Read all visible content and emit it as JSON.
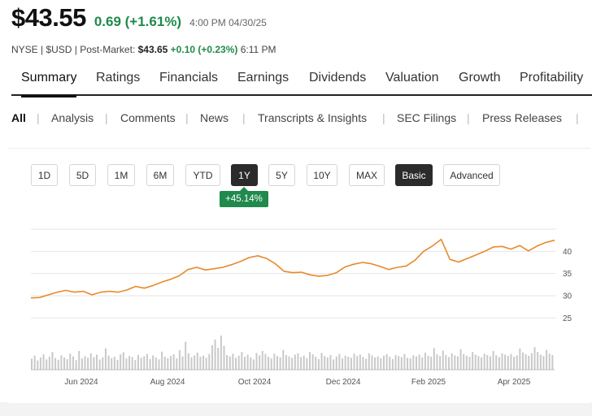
{
  "quote": {
    "price": "$43.55",
    "change": "0.69 (+1.61%)",
    "time": "4:00 PM 04/30/25",
    "meta_prefix": "NYSE | $USD | Post-Market:",
    "post_price": "$43.65",
    "post_change": "+0.10 (+0.23%)",
    "post_time": "6:11 PM"
  },
  "main_tabs": [
    "Summary",
    "Ratings",
    "Financials",
    "Earnings",
    "Dividends",
    "Valuation",
    "Growth",
    "Profitability"
  ],
  "sub_tabs": [
    "All",
    "Analysis",
    "Comments",
    "News",
    "Transcripts & Insights",
    "SEC Filings",
    "Press Releases"
  ],
  "range_buttons": [
    "1D",
    "5D",
    "1M",
    "6M",
    "YTD",
    "1Y",
    "5Y",
    "10Y",
    "MAX"
  ],
  "mode_buttons": [
    "Basic",
    "Advanced"
  ],
  "selected_range": "1Y",
  "selected_mode": "Basic",
  "period_change_badge": "+45.14%",
  "colors": {
    "line": "#e8892c",
    "positive": "#1f8a4c",
    "volume": "#c9c9c9",
    "grid": "#e6e6e6"
  },
  "chart_data": {
    "type": "line",
    "x_tick_labels": [
      "Jun 2024",
      "Aug 2024",
      "Oct 2024",
      "Dec 2024",
      "Feb 2025",
      "Apr 2025"
    ],
    "y_tick_labels": [
      "25",
      "30",
      "35",
      "40"
    ],
    "ylim": [
      22.5,
      45
    ],
    "grid": true,
    "series": [
      {
        "values": [
          29.5,
          29.6,
          30.2,
          30.8,
          31.2,
          30.8,
          31.0,
          30.2,
          30.8,
          31.0,
          30.8,
          31.3,
          32.1,
          31.7,
          32.3,
          33.1,
          33.7,
          34.5,
          35.9,
          36.4,
          35.8,
          36.1,
          36.4,
          37.0,
          37.7,
          38.6,
          39.0,
          38.4,
          37.2,
          35.5,
          35.2,
          35.3,
          34.7,
          34.4,
          34.6,
          35.2,
          36.5,
          37.1,
          37.5,
          37.2,
          36.6,
          35.9,
          36.4,
          36.7,
          38.0,
          40.0,
          41.2,
          42.7,
          38.2,
          37.6,
          38.4,
          39.2,
          40.0,
          41.0,
          41.1,
          40.5,
          41.3,
          40.1,
          41.2,
          42.0,
          42.5
        ]
      }
    ],
    "volume": [
      0.32,
      0.41,
      0.27,
      0.36,
      0.45,
      0.3,
      0.38,
      0.52,
      0.34,
      0.29,
      0.42,
      0.36,
      0.31,
      0.47,
      0.39,
      0.28,
      0.55,
      0.33,
      0.4,
      0.35,
      0.48,
      0.37,
      0.44,
      0.3,
      0.36,
      0.62,
      0.41,
      0.34,
      0.38,
      0.29,
      0.45,
      0.51,
      0.33,
      0.4,
      0.37,
      0.28,
      0.43,
      0.35,
      0.39,
      0.46,
      0.31,
      0.42,
      0.36,
      0.3,
      0.53,
      0.38,
      0.34,
      0.4,
      0.45,
      0.33,
      0.57,
      0.39,
      0.82,
      0.48,
      0.36,
      0.42,
      0.5,
      0.38,
      0.41,
      0.35,
      0.46,
      0.72,
      0.88,
      0.64,
      1.0,
      0.7,
      0.43,
      0.39,
      0.47,
      0.35,
      0.41,
      0.52,
      0.38,
      0.44,
      0.36,
      0.3,
      0.49,
      0.42,
      0.55,
      0.46,
      0.38,
      0.33,
      0.47,
      0.4,
      0.36,
      0.58,
      0.43,
      0.39,
      0.35,
      0.44,
      0.48,
      0.37,
      0.41,
      0.34,
      0.52,
      0.45,
      0.38,
      0.31,
      0.49,
      0.4,
      0.36,
      0.43,
      0.3,
      0.39,
      0.46,
      0.33,
      0.41,
      0.38,
      0.35,
      0.47,
      0.4,
      0.44,
      0.37,
      0.32,
      0.48,
      0.42,
      0.36,
      0.39,
      0.34,
      0.41,
      0.45,
      0.38,
      0.31,
      0.43,
      0.4,
      0.37,
      0.46,
      0.35,
      0.33,
      0.42,
      0.39,
      0.44,
      0.36,
      0.5,
      0.41,
      0.38,
      0.63,
      0.45,
      0.4,
      0.56,
      0.43,
      0.37,
      0.48,
      0.42,
      0.39,
      0.6,
      0.46,
      0.41,
      0.38,
      0.52,
      0.44,
      0.4,
      0.36,
      0.47,
      0.43,
      0.39,
      0.55,
      0.42,
      0.37,
      0.48,
      0.44,
      0.4,
      0.46,
      0.38,
      0.42,
      0.62,
      0.5,
      0.45,
      0.41,
      0.48,
      0.66,
      0.52,
      0.44,
      0.4,
      0.58,
      0.47,
      0.43
    ]
  }
}
